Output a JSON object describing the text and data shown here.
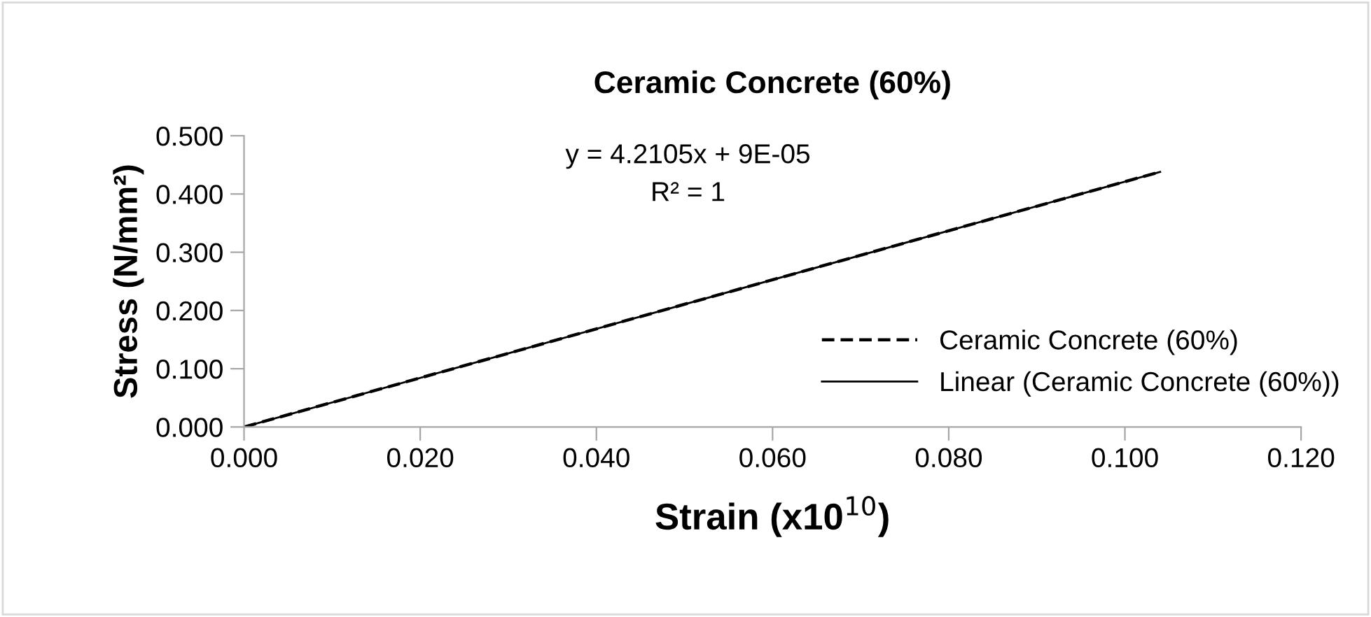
{
  "chart_data": {
    "type": "line",
    "title": "Ceramic Concrete (60%)",
    "xlabel": "Strain (x10$^{10}$)",
    "ylabel": "Stress (N/mm²)",
    "annotations": [
      "y = 4.2105x + 9E-05",
      "R² = 1"
    ],
    "x": [
      0,
      0.104
    ],
    "series": [
      {
        "name": "Ceramic Concrete (60%)",
        "color": "#000000",
        "values": [
          0,
          0.438
        ],
        "line_style": "dashed"
      },
      {
        "name": "Linear (Ceramic Concrete (60%))",
        "color": "#000000",
        "x": [
          0,
          0.104
        ],
        "values": [
          0,
          0.438
        ],
        "line_style": "solid"
      }
    ],
    "xlim": [
      0,
      0.12
    ],
    "xticks": [
      {
        "value": 0,
        "label": "0.000"
      },
      {
        "value": 0.02,
        "label": "0.020"
      },
      {
        "value": 0.04,
        "label": "0.040"
      },
      {
        "value": 0.06,
        "label": "0.060"
      },
      {
        "value": 0.08,
        "label": "0.080"
      },
      {
        "value": 0.1,
        "label": "0.100"
      },
      {
        "value": 0.12,
        "label": "0.120"
      }
    ],
    "ylim": [
      0,
      0.5
    ],
    "yticks": [
      {
        "value": 0,
        "label": "0.000"
      },
      {
        "value": 0.1,
        "label": "0.100"
      },
      {
        "value": 0.2,
        "label": "0.200"
      },
      {
        "value": 0.3,
        "label": "0.300"
      },
      {
        "value": 0.4,
        "label": "0.400"
      },
      {
        "value": 0.5,
        "label": "0.500"
      }
    ],
    "grid": false,
    "legend": "right",
    "marker": "none"
  }
}
